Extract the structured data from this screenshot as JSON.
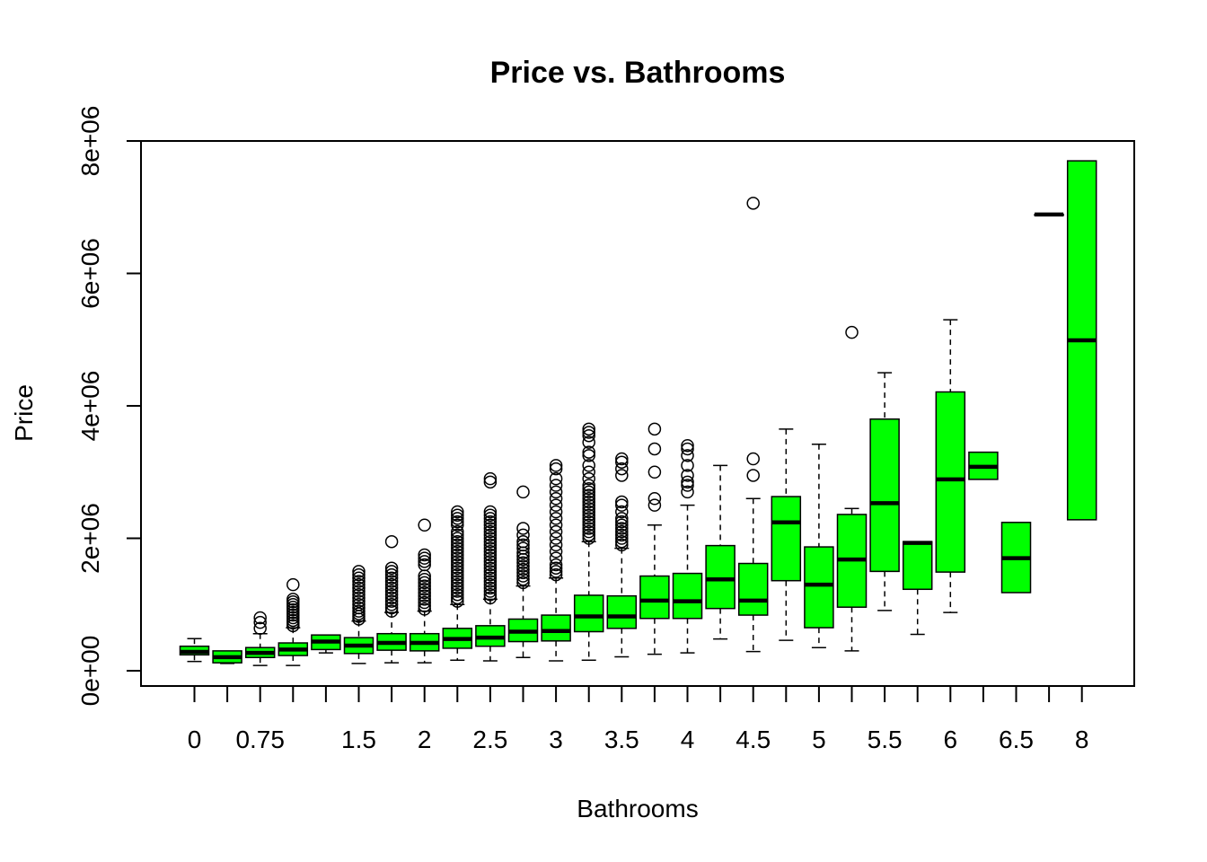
{
  "chart_data": {
    "type": "box",
    "title": "Price vs. Bathrooms",
    "xlabel": "Bathrooms",
    "ylabel": "Price",
    "ylim": [
      0,
      8000000
    ],
    "y_ticks": [
      0,
      2000000,
      4000000,
      6000000,
      8000000
    ],
    "y_tick_labels": [
      "0e+00",
      "2e+06",
      "4e+06",
      "6e+06",
      "8e+06"
    ],
    "categories": [
      "0",
      "0.5",
      "0.75",
      "1",
      "1.25",
      "1.5",
      "1.75",
      "2",
      "2.25",
      "2.5",
      "2.75",
      "3",
      "3.25",
      "3.5",
      "3.75",
      "4",
      "4.25",
      "4.5",
      "4.75",
      "5",
      "5.25",
      "5.5",
      "5.75",
      "6",
      "6.25",
      "6.5",
      "7.5",
      "8"
    ],
    "x_tick_labels": [
      "0",
      "",
      "0.75",
      "",
      "",
      "1.5",
      "",
      "2",
      "",
      "2.5",
      "",
      "3",
      "",
      "3.5",
      "",
      "4",
      "",
      "4.5",
      "",
      "5",
      "",
      "5.5",
      "",
      "6",
      "",
      "6.5",
      "",
      "8"
    ],
    "box_color": "#00ff00",
    "boxes": [
      {
        "x": "0",
        "whisker_low": 140000,
        "q1": 240000,
        "median": 285000,
        "q3": 370000,
        "whisker_high": 485000,
        "outliers": []
      },
      {
        "x": "0.5",
        "whisker_low": 110000,
        "q1": 120000,
        "median": 205000,
        "q3": 300000,
        "whisker_high": 300000,
        "outliers": []
      },
      {
        "x": "0.75",
        "whisker_low": 80000,
        "q1": 200000,
        "median": 270000,
        "q3": 350000,
        "whisker_high": 560000,
        "outliers": [
          640000,
          730000,
          800000
        ]
      },
      {
        "x": "1",
        "whisker_low": 80000,
        "q1": 230000,
        "median": 320000,
        "q3": 420000,
        "whisker_high": 650000,
        "outliers": [
          680000,
          720000,
          760000,
          800000,
          840000,
          880000,
          920000,
          960000,
          1000000,
          1040000,
          1080000,
          1300000
        ]
      },
      {
        "x": "1.25",
        "whisker_low": 270000,
        "q1": 320000,
        "median": 440000,
        "q3": 540000,
        "whisker_high": 540000,
        "outliers": []
      },
      {
        "x": "1.5",
        "whisker_low": 110000,
        "q1": 260000,
        "median": 380000,
        "q3": 500000,
        "whisker_high": 750000,
        "outliers": [
          780000,
          820000,
          860000,
          900000,
          950000,
          1000000,
          1050000,
          1100000,
          1150000,
          1200000,
          1250000,
          1300000,
          1350000,
          1400000,
          1450000,
          1500000
        ]
      },
      {
        "x": "1.75",
        "whisker_low": 120000,
        "q1": 310000,
        "median": 420000,
        "q3": 560000,
        "whisker_high": 880000,
        "outliers": [
          900000,
          950000,
          1000000,
          1050000,
          1100000,
          1150000,
          1200000,
          1250000,
          1300000,
          1350000,
          1400000,
          1450000,
          1500000,
          1550000,
          1950000
        ]
      },
      {
        "x": "2",
        "whisker_low": 120000,
        "q1": 300000,
        "median": 420000,
        "q3": 560000,
        "whisker_high": 900000,
        "outliers": [
          930000,
          980000,
          1030000,
          1080000,
          1130000,
          1180000,
          1230000,
          1280000,
          1330000,
          1380000,
          1430000,
          1600000,
          1650000,
          1700000,
          1750000,
          2200000
        ]
      },
      {
        "x": "2.25",
        "whisker_low": 160000,
        "q1": 340000,
        "median": 480000,
        "q3": 640000,
        "whisker_high": 1000000,
        "outliers": [
          1050000,
          1100000,
          1150000,
          1200000,
          1250000,
          1300000,
          1350000,
          1400000,
          1450000,
          1500000,
          1550000,
          1600000,
          1650000,
          1700000,
          1750000,
          1800000,
          1850000,
          1900000,
          1950000,
          2000000,
          2050000,
          2100000,
          2200000,
          2250000,
          2300000,
          2350000,
          2400000
        ]
      },
      {
        "x": "2.5",
        "whisker_low": 150000,
        "q1": 370000,
        "median": 500000,
        "q3": 680000,
        "whisker_high": 1080000,
        "outliers": [
          1100000,
          1150000,
          1200000,
          1250000,
          1300000,
          1350000,
          1400000,
          1450000,
          1500000,
          1550000,
          1600000,
          1650000,
          1700000,
          1750000,
          1800000,
          1850000,
          1900000,
          1950000,
          2000000,
          2050000,
          2100000,
          2150000,
          2200000,
          2250000,
          2300000,
          2350000,
          2400000,
          2850000,
          2900000
        ]
      },
      {
        "x": "2.75",
        "whisker_low": 200000,
        "q1": 440000,
        "median": 590000,
        "q3": 780000,
        "whisker_high": 1280000,
        "outliers": [
          1330000,
          1380000,
          1430000,
          1480000,
          1530000,
          1580000,
          1630000,
          1680000,
          1730000,
          1780000,
          1850000,
          1900000,
          1950000,
          2050000,
          2150000,
          2700000
        ]
      },
      {
        "x": "3",
        "whisker_low": 150000,
        "q1": 450000,
        "median": 600000,
        "q3": 840000,
        "whisker_high": 1400000,
        "outliers": [
          1450000,
          1500000,
          1550000,
          1600000,
          1700000,
          1800000,
          1900000,
          2000000,
          2100000,
          2200000,
          2300000,
          2400000,
          2500000,
          2600000,
          2700000,
          2800000,
          2900000,
          3050000,
          3100000
        ]
      },
      {
        "x": "3.25",
        "whisker_low": 160000,
        "q1": 590000,
        "median": 820000,
        "q3": 1140000,
        "whisker_high": 1950000,
        "outliers": [
          2000000,
          2050000,
          2100000,
          2150000,
          2200000,
          2250000,
          2300000,
          2350000,
          2400000,
          2450000,
          2500000,
          2550000,
          2600000,
          2650000,
          2700000,
          2750000,
          2800000,
          2900000,
          3000000,
          3100000,
          3250000,
          3300000,
          3450000,
          3550000,
          3600000,
          3650000
        ]
      },
      {
        "x": "3.5",
        "whisker_low": 210000,
        "q1": 640000,
        "median": 820000,
        "q3": 1130000,
        "whisker_high": 1850000,
        "outliers": [
          1900000,
          1950000,
          2000000,
          2050000,
          2100000,
          2150000,
          2200000,
          2250000,
          2300000,
          2400000,
          2500000,
          2550000,
          2950000,
          3050000,
          3150000,
          3200000
        ]
      },
      {
        "x": "3.75",
        "whisker_low": 250000,
        "q1": 790000,
        "median": 1060000,
        "q3": 1430000,
        "whisker_high": 2200000,
        "outliers": [
          2500000,
          2600000,
          3000000,
          3350000,
          3650000
        ]
      },
      {
        "x": "4",
        "whisker_low": 270000,
        "q1": 790000,
        "median": 1050000,
        "q3": 1470000,
        "whisker_high": 2500000,
        "outliers": [
          2700000,
          2800000,
          2850000,
          2950000,
          3100000,
          3250000,
          3350000,
          3400000
        ]
      },
      {
        "x": "4.25",
        "whisker_low": 480000,
        "q1": 940000,
        "median": 1380000,
        "q3": 1890000,
        "whisker_high": 3100000,
        "outliers": []
      },
      {
        "x": "4.5",
        "whisker_low": 290000,
        "q1": 840000,
        "median": 1060000,
        "q3": 1620000,
        "whisker_high": 2600000,
        "outliers": [
          2950000,
          3200000,
          7060000
        ]
      },
      {
        "x": "4.75",
        "whisker_low": 460000,
        "q1": 1360000,
        "median": 2240000,
        "q3": 2630000,
        "whisker_high": 3650000,
        "outliers": []
      },
      {
        "x": "5",
        "whisker_low": 350000,
        "q1": 650000,
        "median": 1300000,
        "q3": 1870000,
        "whisker_high": 3420000,
        "outliers": []
      },
      {
        "x": "5.25",
        "whisker_low": 300000,
        "q1": 960000,
        "median": 1680000,
        "q3": 2360000,
        "whisker_high": 2450000,
        "outliers": [
          5110000
        ]
      },
      {
        "x": "5.5",
        "whisker_low": 910000,
        "q1": 1500000,
        "median": 2530000,
        "q3": 3800000,
        "whisker_high": 4500000,
        "outliers": []
      },
      {
        "x": "5.75",
        "whisker_low": 550000,
        "q1": 1230000,
        "median": 1930000,
        "q3": 1950000,
        "whisker_high": 1950000,
        "outliers": []
      },
      {
        "x": "6",
        "whisker_low": 880000,
        "q1": 1490000,
        "median": 2890000,
        "q3": 4210000,
        "whisker_high": 5300000,
        "outliers": []
      },
      {
        "x": "6.25",
        "whisker_low": 2890000,
        "q1": 2890000,
        "median": 3080000,
        "q3": 3300000,
        "whisker_high": 3300000,
        "outliers": []
      },
      {
        "x": "6.5",
        "whisker_low": 1180000,
        "q1": 1180000,
        "median": 1700000,
        "q3": 2240000,
        "whisker_high": 2240000,
        "outliers": []
      },
      {
        "x": "7.5",
        "whisker_low": 6890000,
        "q1": 6890000,
        "median": 6890000,
        "q3": 6890000,
        "whisker_high": 6890000,
        "outliers": []
      },
      {
        "x": "8",
        "whisker_low": 2280000,
        "q1": 2280000,
        "median": 4990000,
        "q3": 7700000,
        "whisker_high": 7700000,
        "outliers": []
      }
    ]
  }
}
